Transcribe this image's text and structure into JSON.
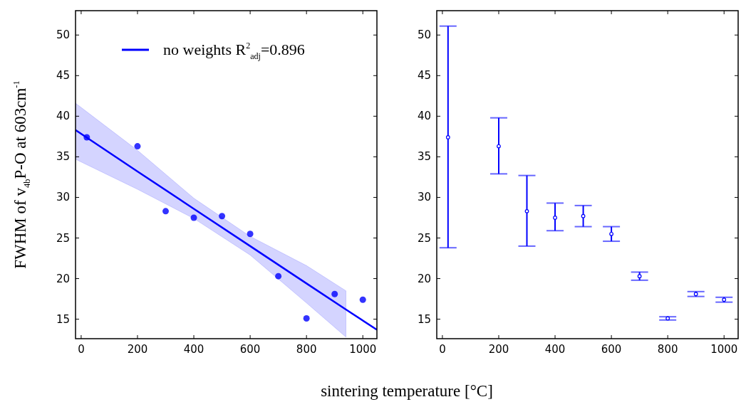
{
  "chart_data": [
    {
      "type": "scatter",
      "ylabel": "FWHM of v$_{4b}$P-O at 603cm$^{-1}$",
      "xlabel": "sintering temperature [°C]",
      "xlim": [
        -20,
        1050
      ],
      "ylim": [
        12.6,
        53
      ],
      "xticks": [
        0,
        200,
        400,
        600,
        800,
        1000
      ],
      "yticks": [
        15,
        20,
        25,
        30,
        35,
        40,
        45,
        50
      ],
      "grid": false,
      "legend": "top right",
      "series": [
        {
          "color": "#3333ff",
          "marker": "circle",
          "x": [
            20,
            200,
            300,
            400,
            500,
            600,
            700,
            800,
            900,
            1000
          ],
          "values": [
            37.4,
            36.3,
            28.3,
            27.5,
            27.7,
            25.5,
            20.3,
            15.1,
            18.1,
            17.4
          ]
        },
        {
          "type": "line",
          "name": "no weights R$^{2}$$_{adj}$=0.896",
          "color": "#0000ff",
          "x": [
            -20,
            200,
            400,
            600,
            800,
            940,
            1050
          ],
          "values": [
            38.3,
            33.2,
            28.6,
            24.0,
            19.4,
            16.2,
            13.7
          ],
          "lower": [
            34.7,
            31.0,
            27.4,
            22.9,
            17.0,
            12.8,
            null
          ],
          "upper": [
            41.6,
            35.8,
            29.9,
            25.2,
            21.6,
            18.5,
            null
          ]
        }
      ]
    },
    {
      "type": "scatter",
      "xlim": [
        -20,
        1050
      ],
      "ylim": [
        12.6,
        53
      ],
      "xticks": [
        0,
        200,
        400,
        600,
        800,
        1000
      ],
      "yticks": [
        15,
        20,
        25,
        30,
        35,
        40,
        45,
        50
      ],
      "grid": false,
      "series": [
        {
          "color": "#0000ff",
          "marker": "circle",
          "x": [
            20,
            200,
            300,
            400,
            500,
            600,
            700,
            800,
            900,
            1000
          ],
          "values": [
            37.4,
            36.3,
            28.3,
            27.5,
            27.7,
            25.5,
            20.3,
            15.1,
            18.1,
            17.4
          ],
          "errors": [
            [
              23.8,
              51.1
            ],
            [
              32.9,
              39.8
            ],
            [
              24.0,
              32.7
            ],
            [
              25.9,
              29.3
            ],
            [
              26.4,
              29.0
            ],
            [
              24.6,
              26.4
            ],
            [
              19.8,
              20.8
            ],
            [
              14.9,
              15.3
            ],
            [
              17.8,
              18.4
            ],
            [
              17.1,
              17.7
            ]
          ]
        }
      ]
    }
  ]
}
